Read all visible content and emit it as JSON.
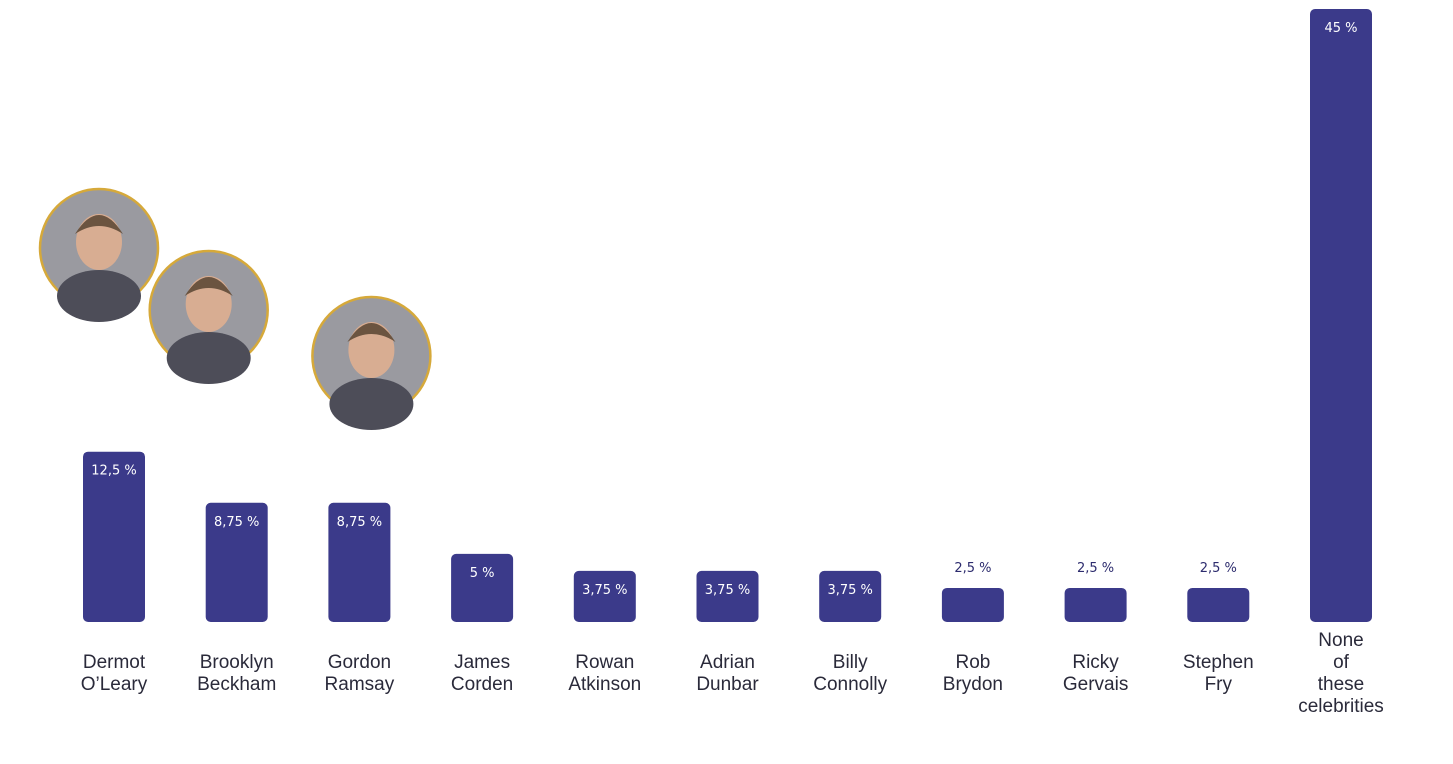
{
  "chart_data": {
    "type": "bar",
    "title": "",
    "xlabel": "",
    "ylabel": "",
    "ylim": [
      0,
      45
    ],
    "grid": false,
    "legend": "none",
    "bar_color": "#3b3a8a",
    "categories": [
      [
        "Dermot",
        "O’Leary"
      ],
      [
        "Brooklyn",
        "Beckham"
      ],
      [
        "Gordon",
        "Ramsay"
      ],
      [
        "James",
        "Corden"
      ],
      [
        "Rowan",
        "Atkinson"
      ],
      [
        "Adrian",
        "Dunbar"
      ],
      [
        "Billy",
        "Connolly"
      ],
      [
        "Rob",
        "Brydon"
      ],
      [
        "Ricky",
        "Gervais"
      ],
      [
        "Stephen",
        "Fry"
      ],
      [
        "None",
        "of",
        "these",
        "celebrities"
      ]
    ],
    "values": [
      12.5,
      8.75,
      8.75,
      5,
      3.75,
      3.75,
      3.75,
      2.5,
      2.5,
      2.5,
      45
    ],
    "value_labels": [
      "12,5 %",
      "8,75 %",
      "8,75 %",
      "5 %",
      "3,75 %",
      "3,75 %",
      "3,75 %",
      "2,5 %",
      "2,5 %",
      "2,5 %",
      "45 %"
    ],
    "photos": [
      {
        "category_index": 0,
        "icon": "celebrity-photo-dermot-oleary"
      },
      {
        "category_index": 1,
        "icon": "celebrity-photo-brooklyn-beckham"
      },
      {
        "category_index": 2,
        "icon": "celebrity-photo-gordon-ramsay"
      }
    ]
  }
}
